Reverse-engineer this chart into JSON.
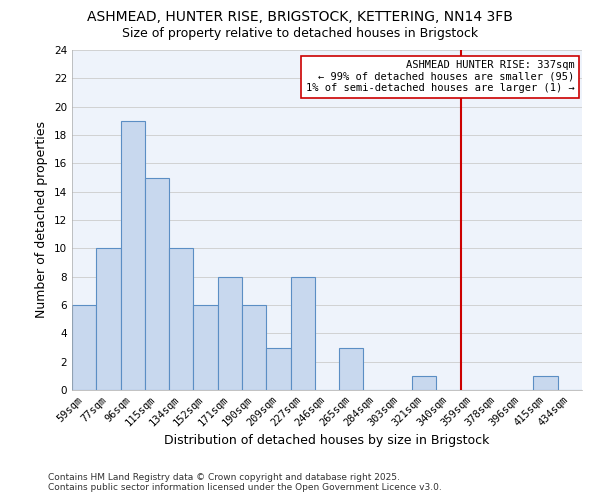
{
  "title": "ASHMEAD, HUNTER RISE, BRIGSTOCK, KETTERING, NN14 3FB",
  "subtitle": "Size of property relative to detached houses in Brigstock",
  "xlabel": "Distribution of detached houses by size in Brigstock",
  "ylabel": "Number of detached properties",
  "bar_labels": [
    "59sqm",
    "77sqm",
    "96sqm",
    "115sqm",
    "134sqm",
    "152sqm",
    "171sqm",
    "190sqm",
    "209sqm",
    "227sqm",
    "246sqm",
    "265sqm",
    "284sqm",
    "303sqm",
    "321sqm",
    "340sqm",
    "359sqm",
    "378sqm",
    "396sqm",
    "415sqm",
    "434sqm"
  ],
  "bar_values": [
    6,
    10,
    19,
    15,
    10,
    6,
    8,
    6,
    3,
    8,
    0,
    3,
    0,
    0,
    1,
    0,
    0,
    0,
    0,
    1,
    0
  ],
  "bar_color": "#c8d8ee",
  "bar_edge_color": "#5b8ec4",
  "grid_color": "#cccccc",
  "background_color": "#ffffff",
  "plot_bg_color": "#eef3fb",
  "vline_x_index": 15,
  "vline_color": "#cc0000",
  "annotation_title": "ASHMEAD HUNTER RISE: 337sqm",
  "annotation_line1": "← 99% of detached houses are smaller (95)",
  "annotation_line2": "1% of semi-detached houses are larger (1) →",
  "annotation_box_color": "#ffffff",
  "annotation_border_color": "#cc0000",
  "ylim": [
    0,
    24
  ],
  "yticks": [
    0,
    2,
    4,
    6,
    8,
    10,
    12,
    14,
    16,
    18,
    20,
    22,
    24
  ],
  "footnote1": "Contains HM Land Registry data © Crown copyright and database right 2025.",
  "footnote2": "Contains public sector information licensed under the Open Government Licence v3.0.",
  "title_fontsize": 10,
  "subtitle_fontsize": 9,
  "axis_label_fontsize": 9,
  "tick_fontsize": 7.5,
  "annotation_fontsize": 7.5,
  "footnote_fontsize": 6.5
}
